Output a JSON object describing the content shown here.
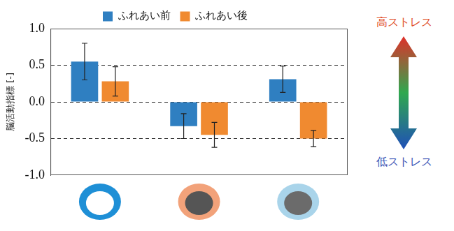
{
  "chart_data": {
    "type": "bar",
    "categories": [
      null,
      null,
      null
    ],
    "series": [
      {
        "name": "ふれあい前",
        "color": "#2f7fc1",
        "values": [
          0.55,
          -0.33,
          0.31
        ],
        "errors": [
          0.25,
          0.17,
          0.18
        ]
      },
      {
        "name": "ふれあい後",
        "color": "#f08a30",
        "values": [
          0.28,
          -0.45,
          -0.5
        ],
        "errors": [
          0.2,
          0.17,
          0.11
        ]
      }
    ],
    "y_label": "脳活動指標 [-]",
    "ylim": [
      -1,
      1
    ],
    "yticks": [
      {
        "value": -1,
        "label": "-1.0"
      },
      {
        "value": -0.5,
        "label": "-0.5"
      },
      {
        "value": 0,
        "label": "0.0"
      },
      {
        "value": 0.5,
        "label": "0.5"
      },
      {
        "value": 1,
        "label": "1.0"
      }
    ],
    "grid": true,
    "legend": "top",
    "tick_labels": "y",
    "annotations": [
      {
        "text": "高ストレス",
        "color": "#e0502a"
      },
      {
        "text": "低ストレス",
        "color": "#3b55b5"
      }
    ]
  }
}
